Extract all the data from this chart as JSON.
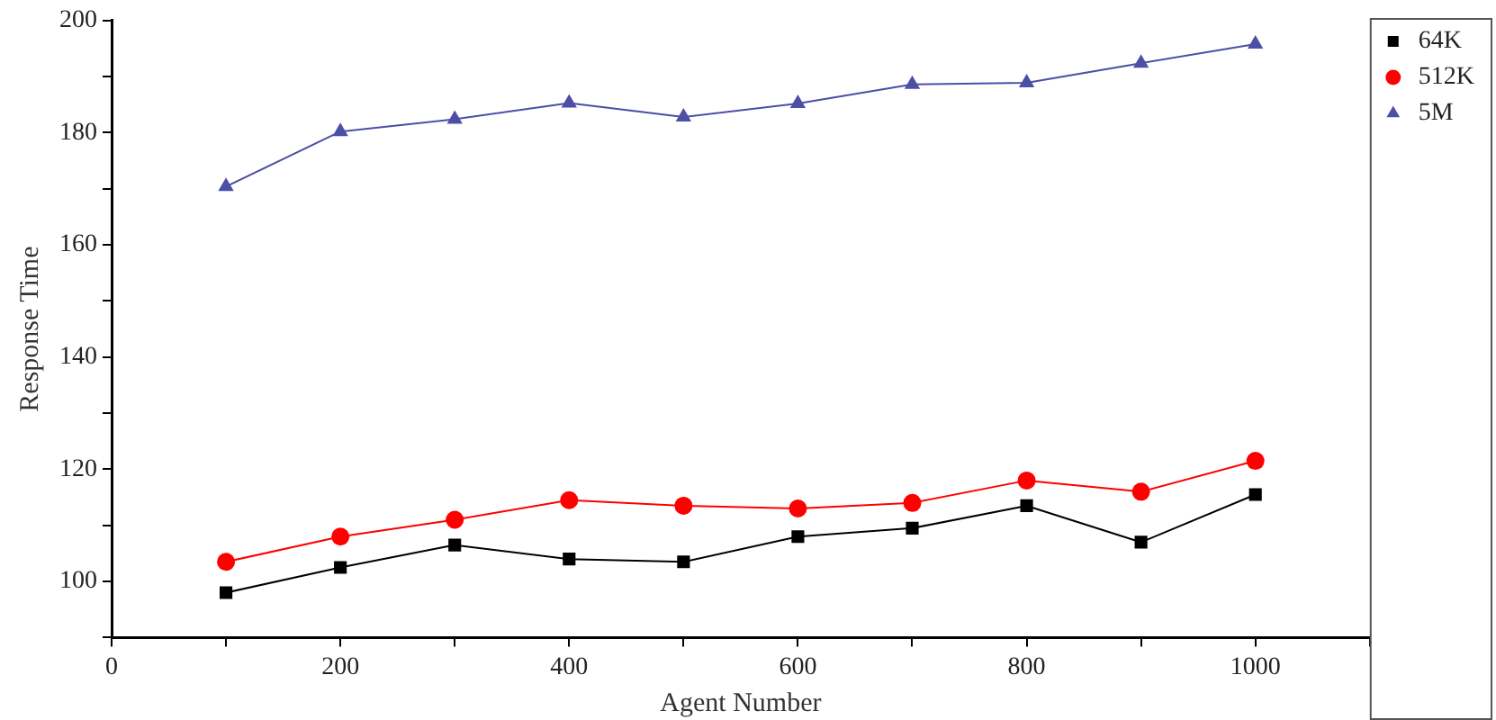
{
  "chart_data": {
    "type": "line",
    "xlabel": "Agent Number",
    "ylabel": "Response Time",
    "x": [
      100,
      200,
      300,
      400,
      500,
      600,
      700,
      800,
      900,
      1000
    ],
    "series": [
      {
        "name": "64K",
        "color": "#000000",
        "marker": "square",
        "values": [
          98,
          102.5,
          106.5,
          104,
          103.5,
          108,
          109.5,
          113.5,
          107,
          115.5
        ]
      },
      {
        "name": "512K",
        "color": "#ff0000",
        "marker": "circle",
        "values": [
          103.5,
          108,
          111,
          114.5,
          113.5,
          113,
          114,
          118,
          116,
          121.5
        ]
      },
      {
        "name": "5M",
        "color": "#4b4fa6",
        "marker": "triangle",
        "values": [
          170.4,
          180.2,
          182.4,
          185.3,
          182.8,
          185.2,
          188.6,
          188.9,
          192.4,
          195.8
        ]
      }
    ],
    "xlim": [
      0,
      1100
    ],
    "xticks": [
      0,
      {
        "value": 100,
        "label": null
      },
      200,
      {
        "value": 300,
        "label": null
      },
      400,
      {
        "value": 500,
        "label": null
      },
      600,
      {
        "value": 700,
        "label": null
      },
      800,
      {
        "value": 900,
        "label": null
      },
      1000,
      {
        "value": 1100,
        "label": null
      }
    ],
    "ylim": [
      90,
      200
    ],
    "yticks": [
      {
        "value": 90,
        "label": null
      },
      100,
      {
        "value": 110,
        "label": null
      },
      120,
      {
        "value": 130,
        "label": null
      },
      140,
      {
        "value": 150,
        "label": null
      },
      160,
      {
        "value": 170,
        "label": null
      },
      180,
      {
        "value": 190,
        "label": null
      },
      200
    ],
    "grid": false,
    "legend": "top right",
    "line_style": "solid"
  }
}
